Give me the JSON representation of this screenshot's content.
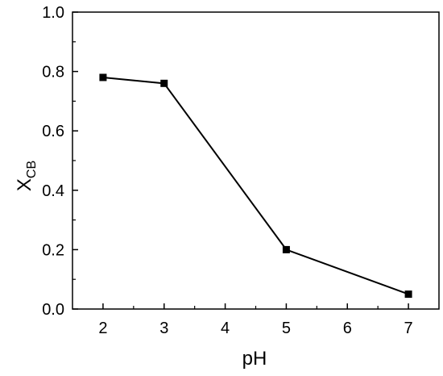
{
  "chart_data": {
    "type": "line",
    "title": "",
    "xlabel": "pH",
    "ylabel": "X",
    "ylabel_subscript": "CB",
    "xlim": [
      1.5,
      7.5
    ],
    "ylim": [
      0.0,
      1.0
    ],
    "xticks": [
      2,
      3,
      4,
      5,
      6,
      7
    ],
    "yticks": [
      0.0,
      0.2,
      0.4,
      0.6,
      0.8,
      1.0
    ],
    "ytick_labels": [
      "0.0",
      "0.2",
      "0.4",
      "0.6",
      "0.8",
      "1.0"
    ],
    "grid": false,
    "legend": false,
    "series": [
      {
        "marker": "square",
        "color": "#000000",
        "x": [
          2,
          3,
          5,
          7
        ],
        "y": [
          0.78,
          0.76,
          0.2,
          0.05
        ]
      }
    ]
  }
}
